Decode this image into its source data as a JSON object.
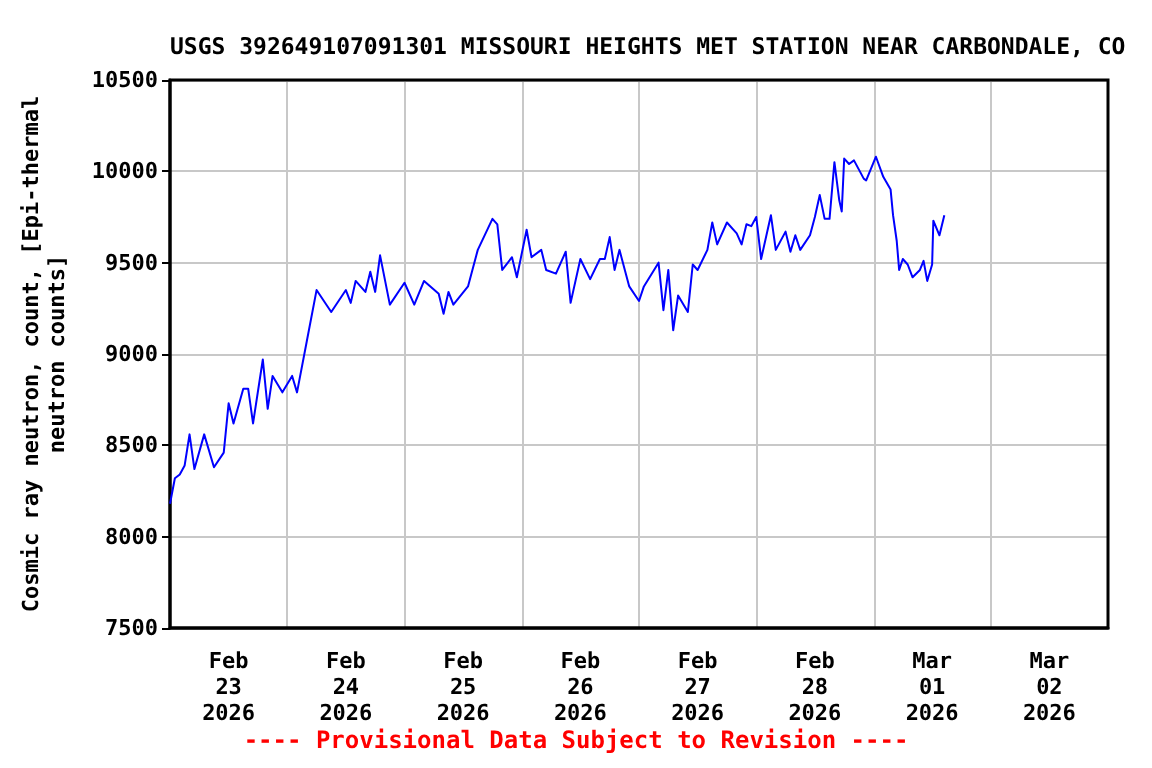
{
  "chart_data": {
    "type": "line",
    "title": "USGS 392649107091301 MISSOURI HEIGHTS MET STATION NEAR CARBONDALE, CO",
    "ylabel": "Cosmic ray neutron, count, [Epi-thermal\nneutron counts]",
    "annotations": [
      "---- Provisional Data Subject to Revision ----"
    ],
    "x": [
      "2026-02-23T00:00",
      "2026-02-23T01:00",
      "2026-02-23T02:00",
      "2026-02-23T03:00",
      "2026-02-23T04:00",
      "2026-02-23T05:00",
      "2026-02-23T07:00",
      "2026-02-23T09:00",
      "2026-02-23T11:00",
      "2026-02-23T12:00",
      "2026-02-23T13:00",
      "2026-02-23T15:00",
      "2026-02-23T16:00",
      "2026-02-23T17:00",
      "2026-02-23T19:00",
      "2026-02-23T20:00",
      "2026-02-23T21:00",
      "2026-02-23T23:00",
      "2026-02-24T01:00",
      "2026-02-24T02:00",
      "2026-02-24T04:00",
      "2026-02-24T06:00",
      "2026-02-24T09:00",
      "2026-02-24T12:00",
      "2026-02-24T13:00",
      "2026-02-24T14:00",
      "2026-02-24T16:00",
      "2026-02-24T17:00",
      "2026-02-24T18:00",
      "2026-02-24T19:00",
      "2026-02-24T21:00",
      "2026-02-25T00:00",
      "2026-02-25T02:00",
      "2026-02-25T04:00",
      "2026-02-25T07:00",
      "2026-02-25T08:00",
      "2026-02-25T09:00",
      "2026-02-25T10:00",
      "2026-02-25T13:00",
      "2026-02-25T15:00",
      "2026-02-25T18:00",
      "2026-02-25T19:00",
      "2026-02-25T20:00",
      "2026-02-25T22:00",
      "2026-02-25T23:00",
      "2026-02-26T01:00",
      "2026-02-26T02:00",
      "2026-02-26T04:00",
      "2026-02-26T05:00",
      "2026-02-26T07:00",
      "2026-02-26T09:00",
      "2026-02-26T10:00",
      "2026-02-26T12:00",
      "2026-02-26T14:00",
      "2026-02-26T16:00",
      "2026-02-26T17:00",
      "2026-02-26T18:00",
      "2026-02-26T19:00",
      "2026-02-26T20:00",
      "2026-02-26T22:00",
      "2026-02-27T00:00",
      "2026-02-27T01:00",
      "2026-02-27T04:00",
      "2026-02-27T05:00",
      "2026-02-27T06:00",
      "2026-02-27T07:00",
      "2026-02-27T08:00",
      "2026-02-27T10:00",
      "2026-02-27T11:00",
      "2026-02-27T12:00",
      "2026-02-27T14:00",
      "2026-02-27T15:00",
      "2026-02-27T16:00",
      "2026-02-27T18:00",
      "2026-02-27T20:00",
      "2026-02-27T21:00",
      "2026-02-27T22:00",
      "2026-02-27T23:00",
      "2026-02-28T00:00",
      "2026-02-28T01:00",
      "2026-02-28T03:00",
      "2026-02-28T04:00",
      "2026-02-28T06:00",
      "2026-02-28T07:00",
      "2026-02-28T08:00",
      "2026-02-28T09:00",
      "2026-02-28T11:00",
      "2026-02-28T12:00",
      "2026-02-28T13:00",
      "2026-02-28T14:00",
      "2026-02-28T15:00",
      "2026-02-28T16:00",
      "2026-02-28T17:00",
      "2026-02-28T17:30",
      "2026-02-28T18:00",
      "2026-02-28T19:00",
      "2026-02-28T20:00",
      "2026-02-28T22:00",
      "2026-02-28T22:30",
      "2026-03-01T00:30",
      "2026-03-01T02:00",
      "2026-03-01T03:30",
      "2026-03-01T04:00",
      "2026-03-01T04:45",
      "2026-03-01T05:15",
      "2026-03-01T06:00",
      "2026-03-01T07:00",
      "2026-03-01T08:00",
      "2026-03-01T09:30",
      "2026-03-01T10:15",
      "2026-03-01T11:00",
      "2026-03-01T12:00",
      "2026-03-01T12:15",
      "2026-03-01T13:30",
      "2026-03-01T14:30"
    ],
    "series": [
      {
        "color": "#0000ff",
        "values": [
          8180,
          8320,
          8340,
          8390,
          8560,
          8370,
          8560,
          8380,
          8460,
          8730,
          8620,
          8810,
          8810,
          8620,
          8970,
          8700,
          8880,
          8790,
          8880,
          8790,
          9070,
          9350,
          9230,
          9350,
          9280,
          9400,
          9340,
          9450,
          9340,
          9540,
          9270,
          9390,
          9270,
          9400,
          9330,
          9220,
          9340,
          9270,
          9370,
          9570,
          9740,
          9710,
          9460,
          9530,
          9420,
          9680,
          9530,
          9570,
          9460,
          9440,
          9560,
          9280,
          9520,
          9410,
          9520,
          9520,
          9640,
          9460,
          9570,
          9370,
          9290,
          9370,
          9500,
          9240,
          9460,
          9130,
          9320,
          9230,
          9490,
          9460,
          9570,
          9720,
          9600,
          9720,
          9660,
          9600,
          9710,
          9700,
          9750,
          9520,
          9760,
          9570,
          9670,
          9560,
          9650,
          9570,
          9650,
          9750,
          9870,
          9740,
          9740,
          10050,
          9840,
          9780,
          10070,
          10040,
          10060,
          9960,
          9950,
          10080,
          9970,
          9900,
          9760,
          9620,
          9460,
          9520,
          9490,
          9420,
          9460,
          9510,
          9400,
          9490,
          9730,
          9650,
          9760
        ]
      }
    ],
    "xlim": [
      "2026-02-23",
      "2026-03-03"
    ],
    "xticks": [
      {
        "value": "2026-02-23T12:00",
        "label": "Feb\n23\n2026"
      },
      {
        "value": "2026-02-24",
        "label": null
      },
      {
        "value": "2026-02-24T12:00",
        "label": "Feb\n24\n2026"
      },
      {
        "value": "2026-02-25",
        "label": null
      },
      {
        "value": "2026-02-25T12:00",
        "label": "Feb\n25\n2026"
      },
      {
        "value": "2026-02-26",
        "label": null
      },
      {
        "value": "2026-02-26T12:00",
        "label": "Feb\n26\n2026"
      },
      {
        "value": "2026-02-27",
        "label": null
      },
      {
        "value": "2026-02-27T12:00",
        "label": "Feb\n27\n2026"
      },
      {
        "value": "2026-02-28",
        "label": null
      },
      {
        "value": "2026-02-28T12:00",
        "label": "Feb\n28\n2026"
      },
      {
        "value": "2026-03-01",
        "label": null
      },
      {
        "value": "2026-03-01T12:00",
        "label": "Mar\n01\n2026"
      },
      {
        "value": "2026-03-02",
        "label": null
      },
      {
        "value": "2026-03-02T12:00",
        "label": "Mar\n02\n2026"
      }
    ],
    "ylim": [
      7500,
      10500
    ],
    "yticks": [
      7500,
      8000,
      8500,
      9000,
      9500,
      10000,
      10500
    ],
    "grid": true,
    "marker": "none",
    "line_style": "solid"
  }
}
